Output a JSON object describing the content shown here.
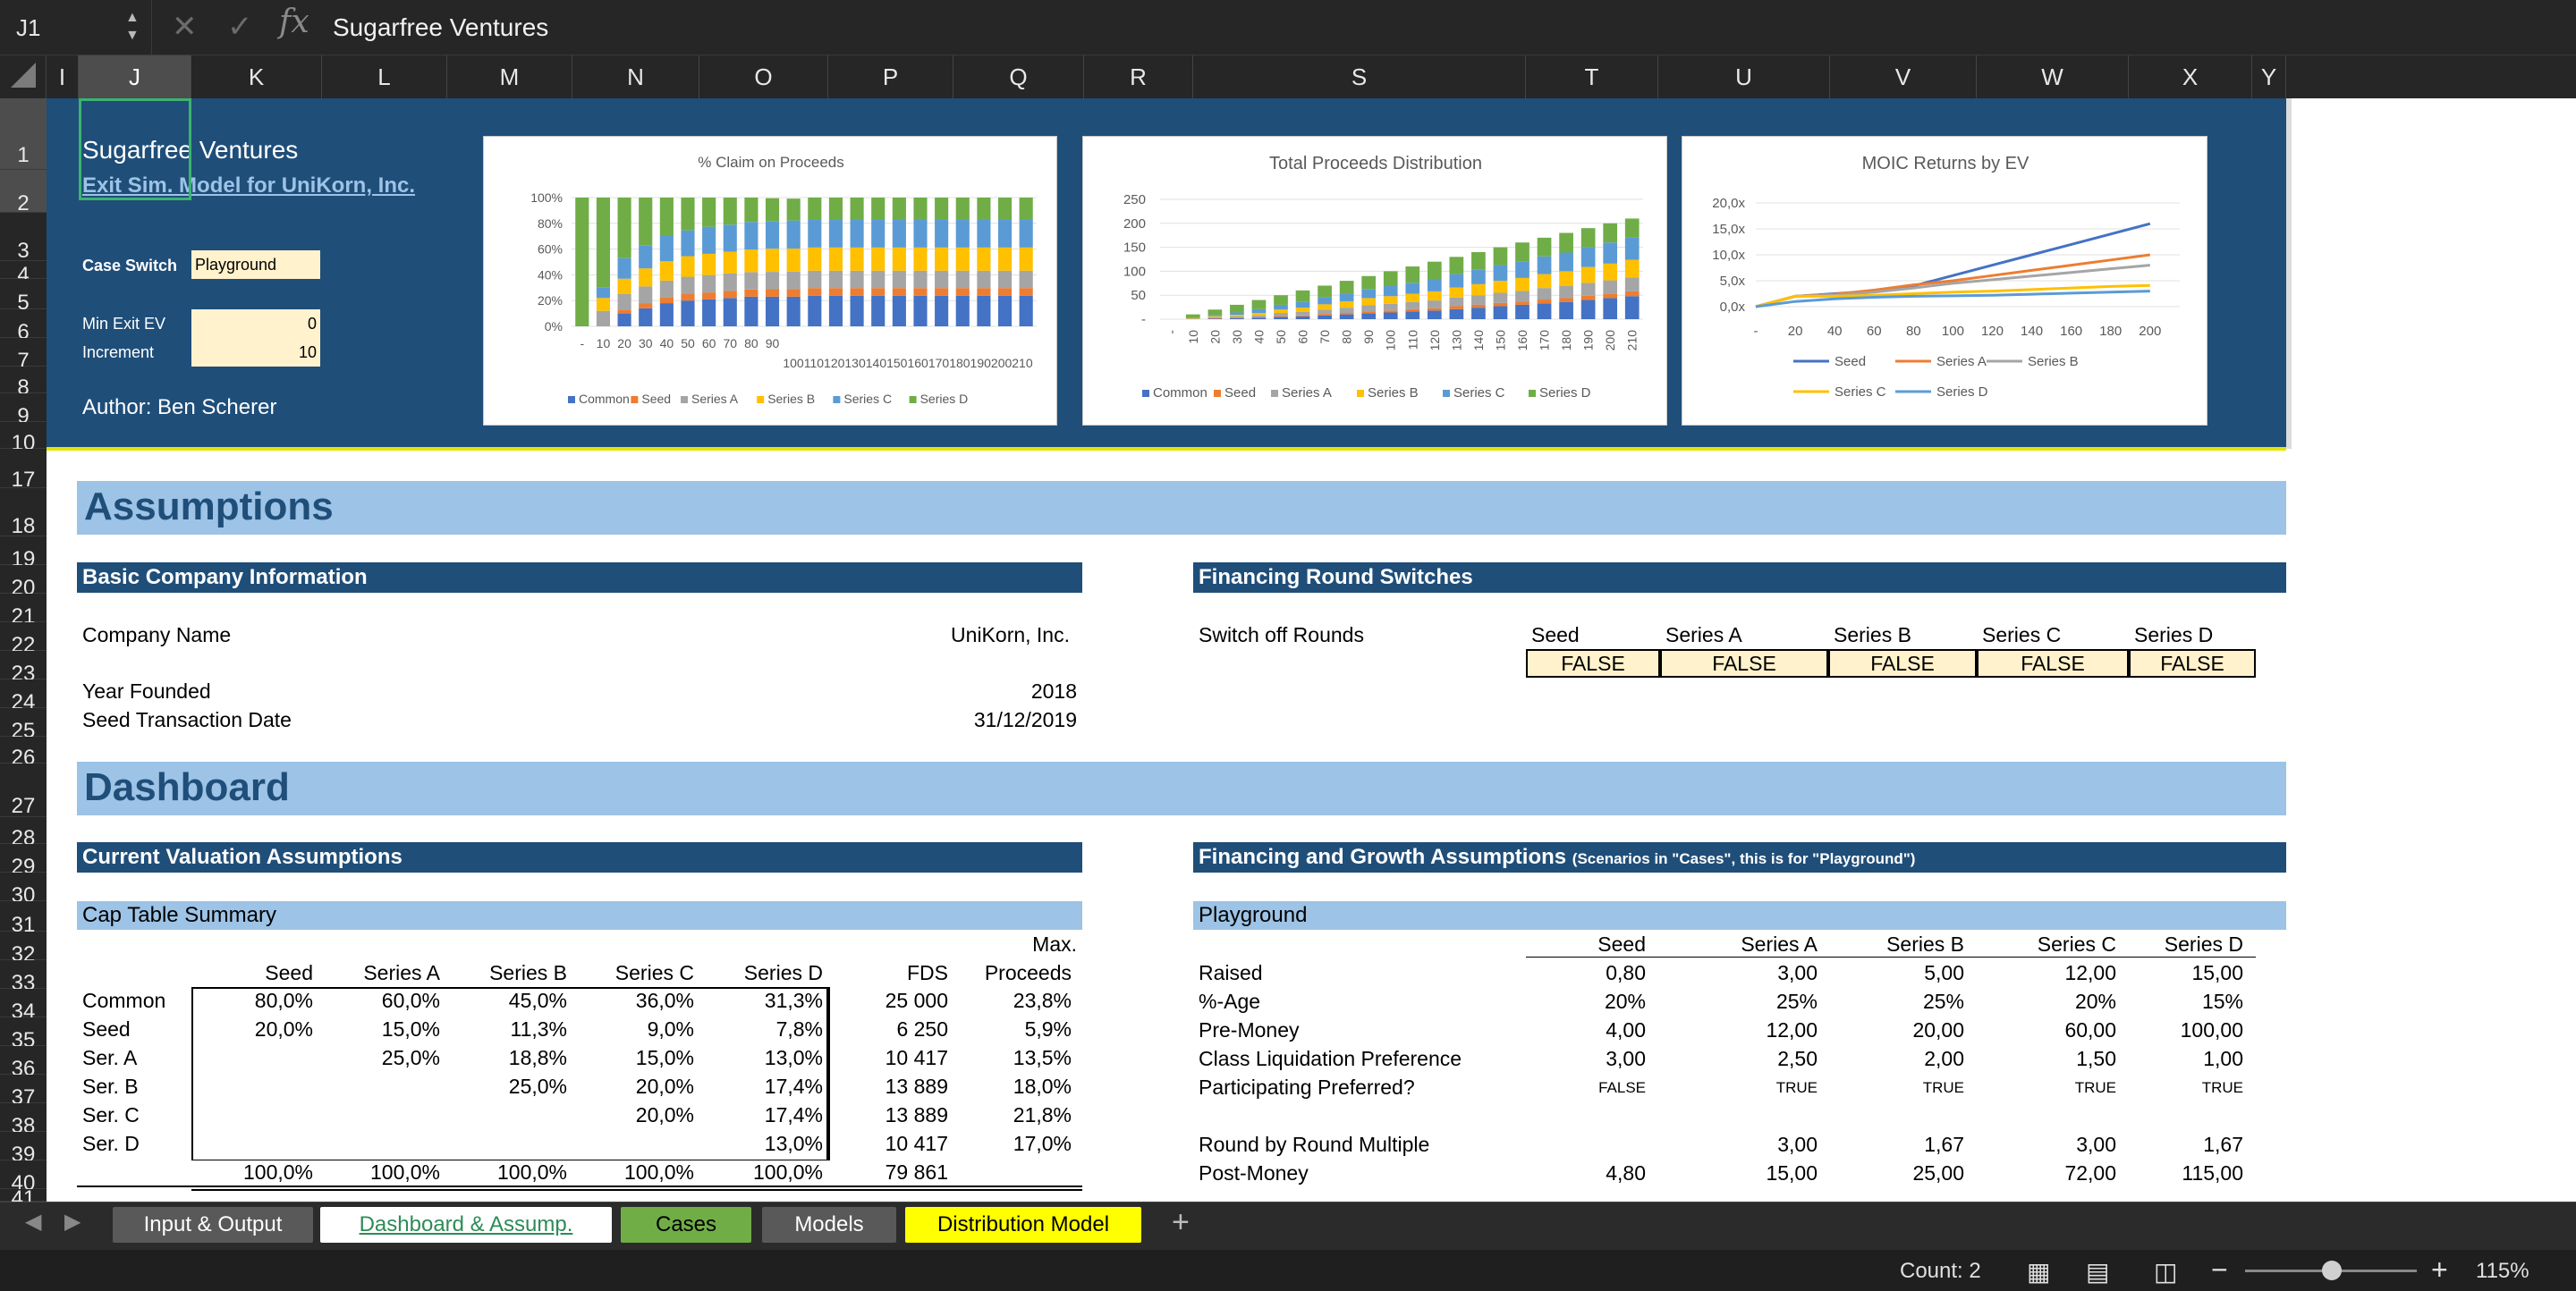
{
  "formula_bar": {
    "name_box": "J1",
    "fx_label": "fx",
    "content": "Sugarfree Ventures"
  },
  "columns": [
    "I",
    "J",
    "K",
    "L",
    "M",
    "N",
    "O",
    "P",
    "Q",
    "R",
    "S",
    "T",
    "U",
    "V",
    "W",
    "X",
    "Y"
  ],
  "rows": [
    "1",
    "2",
    "3",
    "4",
    "5",
    "6",
    "7",
    "8",
    "9",
    "10",
    "17",
    "18",
    "19",
    "20",
    "21",
    "22",
    "23",
    "24",
    "25",
    "26",
    "27",
    "28",
    "29",
    "30",
    "31",
    "32",
    "33",
    "34",
    "35",
    "36",
    "37",
    "38",
    "39",
    "40",
    "41"
  ],
  "header": {
    "title": "Sugarfree Ventures",
    "subtitle": "Exit Sim. Model for UniKorn, Inc.",
    "case_switch_label": "Case Switch",
    "case_switch_value": "Playground",
    "min_exit_label": "Min Exit EV",
    "min_exit_value": "0",
    "increment_label": "Increment",
    "increment_value": "10",
    "author": "Author: Ben Scherer"
  },
  "charts": {
    "claim": {
      "title": "% Claim on Proceeds",
      "y_ticks": [
        "100%",
        "80%",
        "60%",
        "40%",
        "20%",
        "0%"
      ],
      "x_ticks_a": [
        "-",
        "10",
        "20",
        "30",
        "40",
        "50",
        "60",
        "70",
        "80",
        "90"
      ],
      "x_ticks_b": "100110120130140150160170180190200210",
      "legend": [
        "Common",
        "Seed",
        "Series A",
        "Series B",
        "Series C",
        "Series D"
      ]
    },
    "proceeds": {
      "title": "Total Proceeds Distribution",
      "y_ticks": [
        "250",
        "200",
        "150",
        "100",
        "50",
        "-"
      ],
      "x_ticks": [
        "-",
        "10",
        "20",
        "30",
        "40",
        "50",
        "60",
        "70",
        "80",
        "90",
        "100",
        "110",
        "120",
        "130",
        "140",
        "150",
        "160",
        "170",
        "180",
        "190",
        "200",
        "210"
      ],
      "legend": [
        "Common",
        "Seed",
        "Series A",
        "Series B",
        "Series C",
        "Series D"
      ]
    },
    "moic": {
      "title": "MOIC Returns by EV",
      "y_ticks": [
        "20,0x",
        "15,0x",
        "10,0x",
        "5,0x",
        "0,0x"
      ],
      "x_ticks": [
        "-",
        "20",
        "40",
        "60",
        "80",
        "100",
        "120",
        "140",
        "160",
        "180",
        "200"
      ],
      "legend": [
        "Seed",
        "Series A",
        "Series B",
        "Series C",
        "Series D"
      ]
    },
    "series_colors": [
      "#4472c4",
      "#ed7d31",
      "#a5a5a5",
      "#ffc000",
      "#5b9bd5",
      "#70ad47"
    ]
  },
  "chart_data": [
    {
      "type": "bar",
      "title": "% Claim on Proceeds",
      "stacked": true,
      "percent": true,
      "series": [
        {
          "name": "Common",
          "values": [
            0,
            0,
            10,
            14,
            18,
            20,
            21,
            22,
            23,
            23,
            23,
            23.8,
            23.8,
            23.8,
            23.8,
            23.8,
            23.8,
            23.8,
            23.8,
            23.8,
            23.8,
            23.8
          ]
        },
        {
          "name": "Seed",
          "values": [
            0,
            0,
            3,
            4,
            4.5,
            5,
            5.3,
            5.5,
            5.6,
            5.8,
            5.9,
            5.9,
            5.9,
            5.9,
            5.9,
            5.9,
            5.9,
            5.9,
            5.9,
            5.9,
            5.9,
            5.9
          ]
        },
        {
          "name": "Series A",
          "values": [
            0,
            12,
            12,
            13,
            13,
            13.5,
            13.5,
            13.5,
            13.5,
            13.5,
            13.5,
            13.5,
            13.5,
            13.5,
            13.5,
            13.5,
            13.5,
            13.5,
            13.5,
            13.5,
            13.5,
            13.5
          ]
        },
        {
          "name": "Series B",
          "values": [
            0,
            10,
            12,
            14,
            15,
            16,
            16.5,
            17,
            17.5,
            18,
            18,
            18,
            18,
            18,
            18,
            18,
            18,
            18,
            18,
            18,
            18,
            18
          ]
        },
        {
          "name": "Series C",
          "values": [
            0,
            8,
            16,
            18,
            20,
            20,
            21,
            21,
            21.5,
            21.5,
            21.8,
            21.8,
            21.8,
            21.8,
            21.8,
            21.8,
            21.8,
            21.8,
            21.8,
            21.8,
            21.8,
            21.8
          ]
        },
        {
          "name": "Series D",
          "values": [
            100,
            70,
            47,
            37,
            29.5,
            25.5,
            22.7,
            21,
            18.9,
            17.7,
            17,
            17,
            17,
            17,
            17,
            17,
            17,
            17,
            17,
            17,
            17,
            17
          ]
        }
      ]
    },
    {
      "type": "bar",
      "title": "Total Proceeds Distribution",
      "stacked": true,
      "ylim": [
        0,
        250
      ],
      "x": [
        0,
        10,
        20,
        30,
        40,
        50,
        60,
        70,
        80,
        90,
        100,
        110,
        120,
        130,
        140,
        150,
        160,
        170,
        180,
        190,
        200,
        210
      ],
      "series": [
        {
          "name": "Common",
          "values": [
            0,
            0,
            1,
            2,
            3,
            5,
            6,
            8,
            10,
            12,
            14,
            16,
            18,
            21,
            24,
            27,
            30,
            33,
            36,
            40,
            44,
            48
          ]
        },
        {
          "name": "Seed",
          "values": [
            0,
            0,
            1,
            1,
            1,
            2,
            2,
            3,
            3,
            4,
            4,
            5,
            5,
            6,
            6,
            7,
            7,
            8,
            8,
            9,
            9,
            10
          ]
        },
        {
          "name": "Series A",
          "values": [
            0,
            1,
            2,
            3,
            4,
            6,
            7,
            9,
            11,
            13,
            14,
            15,
            16,
            18,
            20,
            21,
            22,
            24,
            25,
            27,
            28,
            29
          ]
        },
        {
          "name": "Series B",
          "values": [
            0,
            1,
            2,
            3,
            5,
            7,
            9,
            11,
            13,
            15,
            16,
            17,
            19,
            21,
            23,
            25,
            27,
            29,
            31,
            33,
            35,
            37
          ]
        },
        {
          "name": "Series C",
          "values": [
            0,
            1,
            3,
            5,
            8,
            10,
            12,
            14,
            17,
            19,
            21,
            23,
            26,
            28,
            31,
            33,
            35,
            37,
            39,
            41,
            44,
            46
          ]
        },
        {
          "name": "Series D",
          "values": [
            0,
            7,
            11,
            16,
            19,
            20,
            24,
            25,
            26,
            27,
            31,
            34,
            36,
            36,
            36,
            37,
            39,
            39,
            41,
            40,
            40,
            40
          ]
        }
      ]
    },
    {
      "type": "line",
      "title": "MOIC Returns by EV",
      "x": [
        0,
        20,
        40,
        60,
        80,
        100,
        120,
        140,
        160,
        180,
        200
      ],
      "ylim": [
        0,
        20
      ],
      "series": [
        {
          "name": "Seed",
          "values": [
            0,
            2,
            2.5,
            3,
            4,
            6,
            8,
            10,
            12,
            14,
            16
          ]
        },
        {
          "name": "Series A",
          "values": [
            0,
            2,
            2.4,
            3.2,
            4.2,
            5,
            6,
            7,
            8,
            9,
            10
          ]
        },
        {
          "name": "Series B",
          "values": [
            0,
            2,
            2.2,
            2.8,
            3.6,
            4.5,
            5.2,
            5.9,
            6.6,
            7.3,
            8
          ]
        },
        {
          "name": "Series C",
          "values": [
            0,
            2,
            2,
            2.2,
            2.5,
            2.8,
            3,
            3.3,
            3.6,
            3.9,
            4.1
          ]
        },
        {
          "name": "Series D",
          "values": [
            0,
            1,
            1.5,
            1.8,
            2,
            2.1,
            2.2,
            2.4,
            2.6,
            2.8,
            3
          ]
        }
      ]
    }
  ],
  "assumptions": {
    "title": "Assumptions",
    "basic_header": "Basic Company Information",
    "company_name_label": "Company Name",
    "company_name": "UniKorn, Inc.",
    "year_founded_label": "Year Founded",
    "year_founded": "2018",
    "seed_date_label": "Seed Transaction Date",
    "seed_date": "31/12/2019",
    "switches_header": "Financing Round Switches",
    "switch_off_label": "Switch off Rounds",
    "switch_rounds": [
      "Seed",
      "Series A",
      "Series B",
      "Series C",
      "Series D"
    ],
    "switch_values": [
      "FALSE",
      "FALSE",
      "FALSE",
      "FALSE",
      "FALSE"
    ]
  },
  "dashboard": {
    "title": "Dashboard",
    "current_val_header": "Current Valuation Assumptions",
    "cap_table_header": "Cap Table Summary",
    "cap_cols": [
      "Seed",
      "Series A",
      "Series B",
      "Series C",
      "Series D",
      "FDS",
      "Proceeds"
    ],
    "max_label": "Max.",
    "cap_rows": [
      {
        "label": "Common",
        "vals": [
          "80,0%",
          "60,0%",
          "45,0%",
          "36,0%",
          "31,3%",
          "25 000",
          "23,8%"
        ]
      },
      {
        "label": "Seed",
        "vals": [
          "20,0%",
          "15,0%",
          "11,3%",
          "9,0%",
          "7,8%",
          "6 250",
          "5,9%"
        ]
      },
      {
        "label": "Ser. A",
        "vals": [
          "",
          "25,0%",
          "18,8%",
          "15,0%",
          "13,0%",
          "10 417",
          "13,5%"
        ]
      },
      {
        "label": "Ser. B",
        "vals": [
          "",
          "",
          "25,0%",
          "20,0%",
          "17,4%",
          "13 889",
          "18,0%"
        ]
      },
      {
        "label": "Ser. C",
        "vals": [
          "",
          "",
          "",
          "20,0%",
          "17,4%",
          "13 889",
          "21,8%"
        ]
      },
      {
        "label": "Ser. D",
        "vals": [
          "",
          "",
          "",
          "",
          "13,0%",
          "10 417",
          "17,0%"
        ]
      },
      {
        "label": "",
        "vals": [
          "100,0%",
          "100,0%",
          "100,0%",
          "100,0%",
          "100,0%",
          "79 861",
          ""
        ]
      }
    ],
    "fin_header": "Financing and Growth Assumptions",
    "fin_header_note": "(Scenarios in \"Cases\", this is for \"Playground\")",
    "playground_label": "Playground",
    "fin_cols": [
      "Seed",
      "Series A",
      "Series B",
      "Series C",
      "Series D"
    ],
    "fin_rows": [
      {
        "label": "Raised",
        "vals": [
          "0,80",
          "3,00",
          "5,00",
          "12,00",
          "15,00"
        ]
      },
      {
        "label": "%-Age",
        "vals": [
          "20%",
          "25%",
          "25%",
          "20%",
          "15%"
        ]
      },
      {
        "label": "Pre-Money",
        "vals": [
          "4,00",
          "12,00",
          "20,00",
          "60,00",
          "100,00"
        ]
      },
      {
        "label": "Class Liquidation Preference",
        "vals": [
          "3,00",
          "2,50",
          "2,00",
          "1,50",
          "1,00"
        ]
      },
      {
        "label": "Participating Preferred?",
        "vals": [
          "FALSE",
          "TRUE",
          "TRUE",
          "TRUE",
          "TRUE"
        ]
      },
      {
        "label": "",
        "vals": [
          "",
          "",
          "",
          "",
          ""
        ]
      },
      {
        "label": "Round by Round Multiple",
        "vals": [
          "",
          "3,00",
          "1,67",
          "3,00",
          "1,67"
        ]
      },
      {
        "label": "Post-Money",
        "vals": [
          "4,80",
          "15,00",
          "25,00",
          "72,00",
          "115,00"
        ]
      }
    ]
  },
  "sheet_tabs": [
    {
      "label": "Input & Output",
      "bg": "#595959",
      "fg": "#ffffff"
    },
    {
      "label": "Dashboard & Assump.",
      "bg": "#ffffff",
      "fg": "#2e8b57"
    },
    {
      "label": "Cases",
      "bg": "#70ad47",
      "fg": "#000000"
    },
    {
      "label": "Models",
      "bg": "#595959",
      "fg": "#ffffff"
    },
    {
      "label": "Distribution Model",
      "bg": "#ffff00",
      "fg": "#000000"
    }
  ],
  "add_tab": "+",
  "status": {
    "count": "Count: 2",
    "zoom": "115%"
  }
}
